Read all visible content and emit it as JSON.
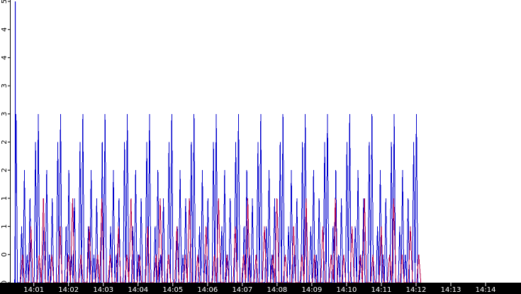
{
  "chart_data": {
    "type": "line",
    "title": "",
    "xlabel": "",
    "ylabel": "",
    "x_tick_labels": [
      "14:01",
      "14:02",
      "14:03",
      "14:04",
      "14:05",
      "14:06",
      "14:07",
      "14:08",
      "14:09",
      "14:10",
      "14:11",
      "14:12",
      "14:13",
      "14:14"
    ],
    "y_tick_labels": [
      "5",
      "4",
      "4",
      "3",
      "3",
      "2",
      "2",
      "1",
      "1",
      "0",
      "0"
    ],
    "y_tick_values": [
      5,
      4.5,
      4,
      3.5,
      3,
      2.5,
      2,
      1.5,
      1,
      0.5,
      0
    ],
    "xlim": [
      "14:00:20",
      "14:14:55"
    ],
    "ylim": [
      0,
      5
    ],
    "grid": false,
    "legend": "none",
    "series": [
      {
        "color": "#0000cc",
        "x_start": "14:00:27",
        "x_end": "14:12:07",
        "period_seconds": 4.8,
        "cycle_values": [
          3,
          0,
          1,
          2,
          0.5,
          1.5,
          0,
          2.5
        ],
        "peak": {
          "x": "14:00:28",
          "y": 5
        }
      },
      {
        "color": "#b8004a",
        "x_start": "14:00:37",
        "x_end": "14:12:10",
        "period_seconds": 7.2,
        "cycle_values": [
          0.5,
          0,
          1,
          0,
          0.5,
          1.5,
          0
        ]
      }
    ],
    "colors": {
      "background": "#ffffff",
      "axis_bar": "#000000",
      "axis_text": "#ffffff",
      "y_tick_text": "#000000"
    }
  }
}
